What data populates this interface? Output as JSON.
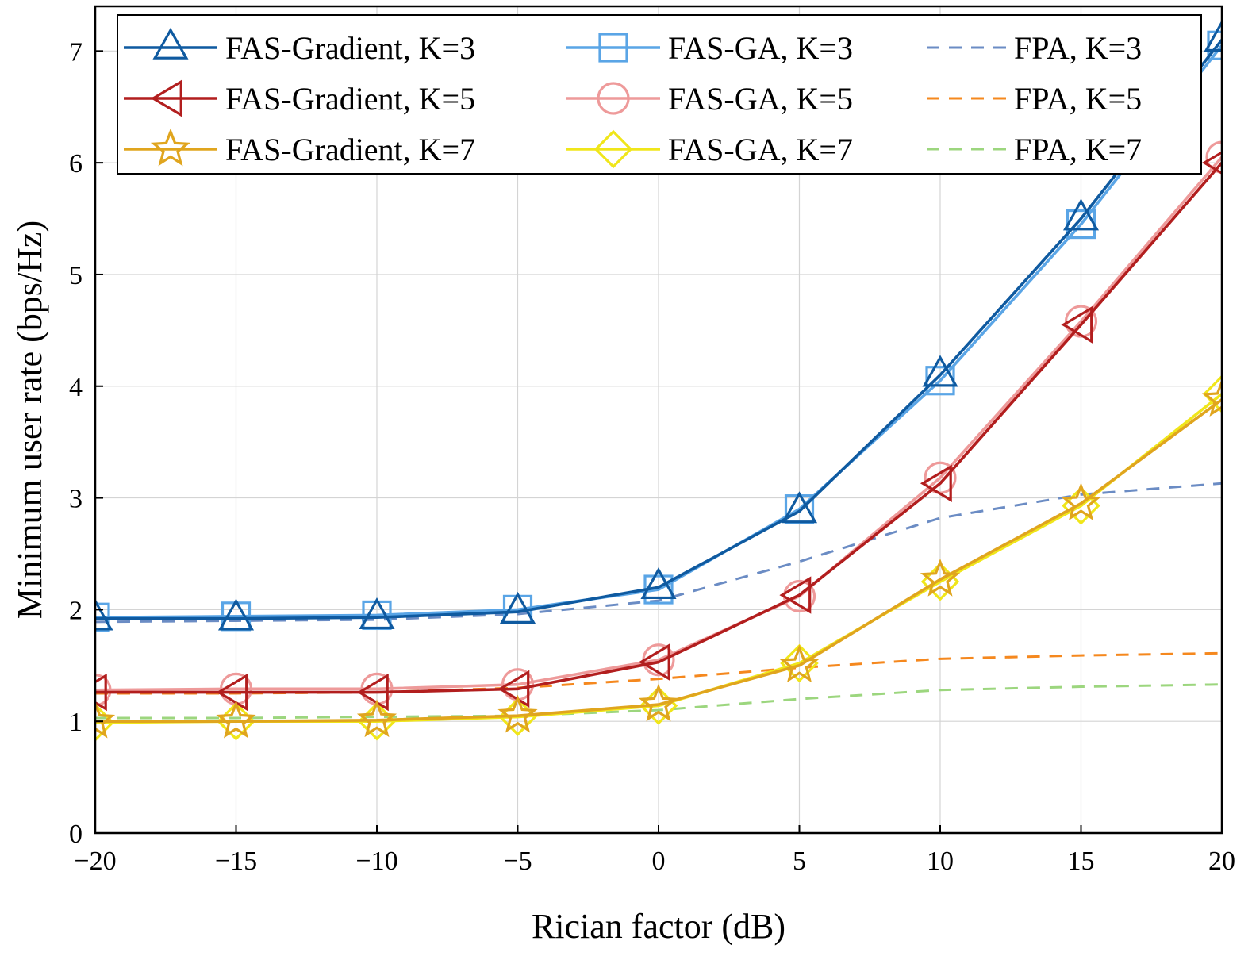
{
  "chart_data": {
    "type": "line",
    "xlabel": "Rician factor (dB)",
    "ylabel": "Minimum user rate (bps/Hz)",
    "x": [
      -20,
      -15,
      -10,
      -5,
      0,
      5,
      10,
      15,
      20
    ],
    "xlim": [
      -20,
      20
    ],
    "ylim": [
      0,
      7.4
    ],
    "xticks": [
      -20,
      -15,
      -10,
      -5,
      0,
      5,
      10,
      15,
      20
    ],
    "xtick_labels": [
      "−20",
      "−15",
      "−10",
      "−5",
      "0",
      "5",
      "10",
      "15",
      "20"
    ],
    "yticks": [
      0,
      1,
      2,
      3,
      4,
      5,
      6,
      7
    ],
    "ytick_labels": [
      "0",
      "1",
      "2",
      "3",
      "4",
      "5",
      "6",
      "7"
    ],
    "grid": true,
    "legend_position": "top",
    "series": [
      {
        "name": "FAS-Gradient, K=3",
        "color": "#0f5aa0",
        "marker": "triangle-up",
        "dash": "solid",
        "values": [
          1.92,
          1.92,
          1.93,
          1.98,
          2.2,
          2.88,
          4.1,
          5.5,
          7.1
        ]
      },
      {
        "name": "FAS-GA, K=3",
        "color": "#5aa5e6",
        "marker": "square",
        "dash": "solid",
        "values": [
          1.93,
          1.94,
          1.95,
          2.0,
          2.18,
          2.9,
          4.05,
          5.45,
          7.05
        ]
      },
      {
        "name": "FPA, K=3",
        "color": "#6b8cc4",
        "marker": "none",
        "dash": "dashed",
        "values": [
          1.89,
          1.9,
          1.91,
          1.96,
          2.08,
          2.43,
          2.82,
          3.03,
          3.13
        ]
      },
      {
        "name": "FAS-Gradient, K=5",
        "color": "#b21e1e",
        "marker": "triangle-left",
        "dash": "solid",
        "values": [
          1.26,
          1.26,
          1.26,
          1.29,
          1.53,
          2.13,
          3.13,
          4.55,
          6.0
        ]
      },
      {
        "name": "FAS-GA, K=5",
        "color": "#ee9a9a",
        "marker": "circle",
        "dash": "solid",
        "values": [
          1.28,
          1.29,
          1.29,
          1.33,
          1.55,
          2.12,
          3.18,
          4.58,
          6.05
        ]
      },
      {
        "name": "FPA, K=5",
        "color": "#f5881e",
        "marker": "none",
        "dash": "dashed",
        "values": [
          1.25,
          1.25,
          1.26,
          1.3,
          1.38,
          1.48,
          1.56,
          1.59,
          1.61
        ]
      },
      {
        "name": "FAS-Gradient, K=7",
        "color": "#e0a51e",
        "marker": "star",
        "dash": "solid",
        "values": [
          1.0,
          1.0,
          1.01,
          1.05,
          1.15,
          1.5,
          2.27,
          2.95,
          3.88
        ]
      },
      {
        "name": "FAS-GA, K=7",
        "color": "#f0e61a",
        "marker": "diamond",
        "dash": "solid",
        "values": [
          0.99,
          1.0,
          1.0,
          1.04,
          1.14,
          1.52,
          2.25,
          2.93,
          3.93
        ]
      },
      {
        "name": "FPA, K=7",
        "color": "#9cd67e",
        "marker": "none",
        "dash": "dashed",
        "values": [
          1.03,
          1.03,
          1.04,
          1.05,
          1.1,
          1.2,
          1.28,
          1.31,
          1.33
        ]
      }
    ],
    "legend_order": [
      0,
      1,
      2,
      3,
      4,
      5,
      6,
      7,
      8
    ]
  }
}
